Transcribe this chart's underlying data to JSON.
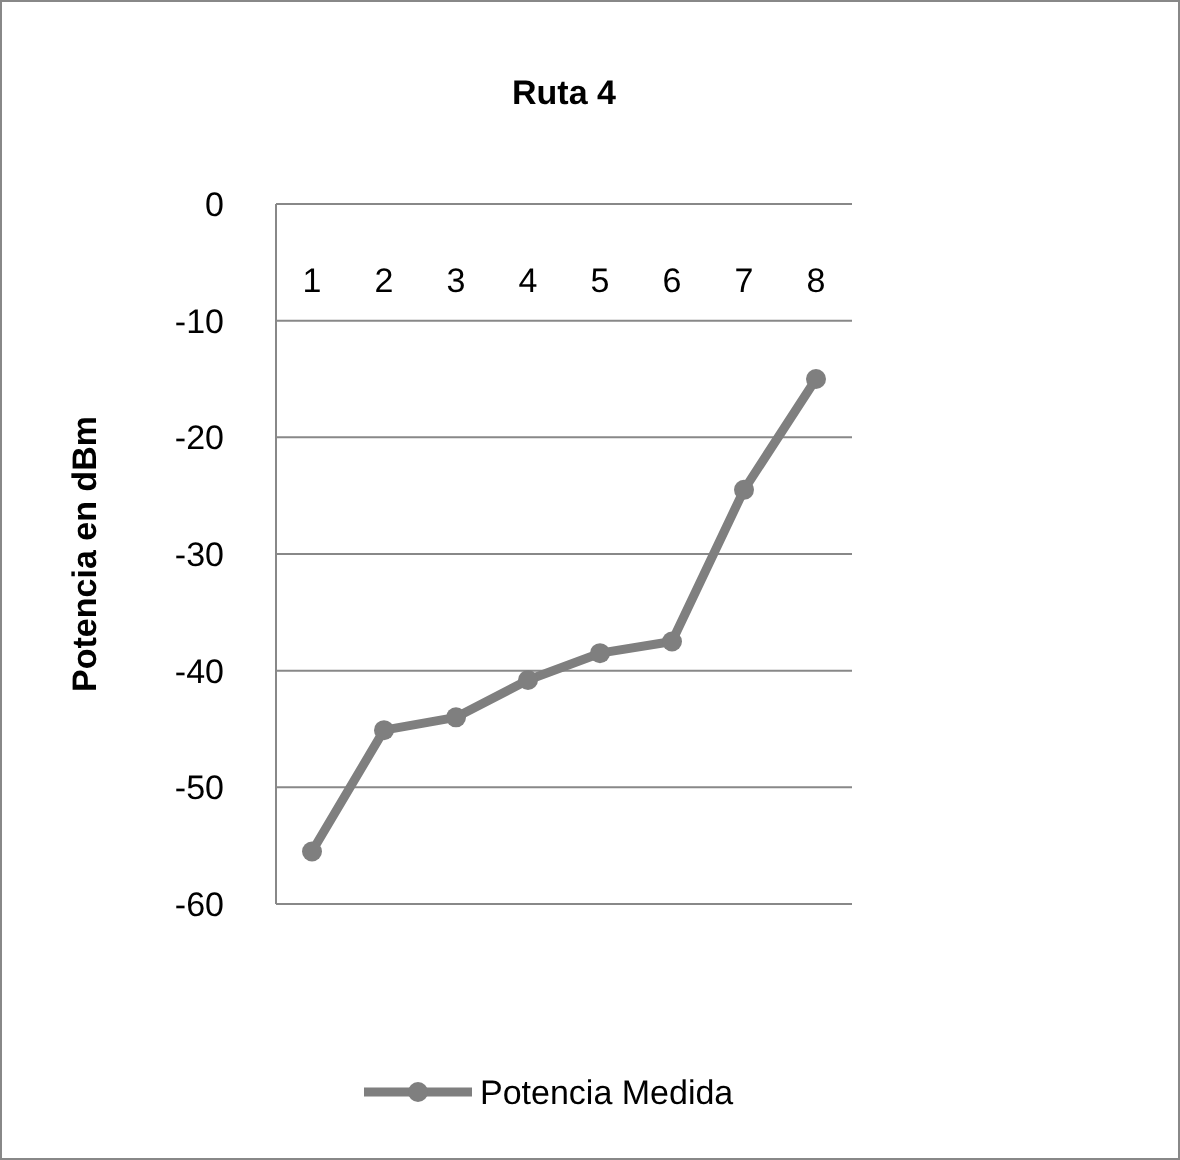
{
  "chart_data": {
    "type": "line",
    "title": "Ruta 4",
    "ylabel": "Potencia en dBm",
    "categories": [
      "1",
      "2",
      "3",
      "4",
      "5",
      "6",
      "7",
      "8"
    ],
    "series": [
      {
        "name": "Potencia Medida",
        "color": "#7f7f7f",
        "values": [
          -55.5,
          -45.1,
          -44.0,
          -40.8,
          -38.5,
          -37.5,
          -24.5,
          -15.0
        ]
      }
    ],
    "ylim": [
      -60,
      0
    ],
    "yticks": [
      -60,
      -50,
      -40,
      -30,
      -20,
      -10,
      0
    ],
    "grid": "y",
    "legend": "bottom",
    "marker": "circle",
    "line_style": "solid"
  }
}
